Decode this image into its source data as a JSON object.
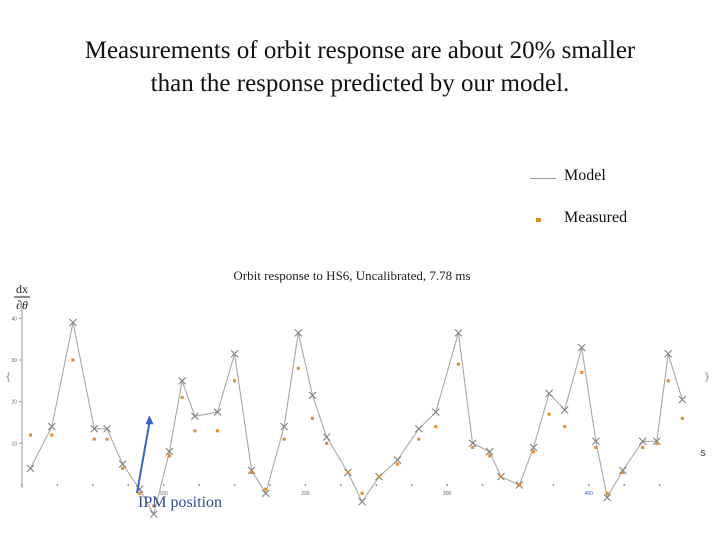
{
  "slide": {
    "title_line1": "Measurements of orbit response are about 20% smaller",
    "title_line2": "than the response predicted by our model."
  },
  "legend": {
    "model_label": "Model",
    "measured_label": "Measured"
  },
  "annotation": {
    "ipm_label": "IPM position",
    "ipm_s": 90
  },
  "colors": {
    "model_line": "#a8a8a8",
    "model_marker": "#7f7f7f",
    "measured_marker": "#e08a2a",
    "axis": "#9a9a9a",
    "ipm_arrow": "#3a63c8",
    "highlight_tick": "#3a63c8"
  },
  "chart_data": {
    "type": "line",
    "title": "Orbit response to HS6, Uncalibrated, 7.78 ms",
    "ylabel_numerator": "dx",
    "ylabel_denominator": "∂θ",
    "xlabel": "s",
    "xlim": [
      0,
      470
    ],
    "ylim": [
      0,
      42
    ],
    "xticks": [
      100,
      200,
      300,
      400
    ],
    "xtick_labels": [
      "100",
      "200",
      "300",
      "400"
    ],
    "highlighted_xtick": "400",
    "yticks": [
      10,
      20,
      30,
      40
    ],
    "ytick_labels": [
      "10",
      "20",
      "30",
      "40"
    ],
    "grid": false,
    "legend_position": "top-right",
    "series": [
      {
        "name": "Model",
        "x": [
          6,
          21,
          36,
          51,
          60,
          71,
          83,
          93,
          104,
          113,
          122,
          138,
          150,
          162,
          172,
          185,
          195,
          205,
          215,
          230,
          240,
          252,
          265,
          280,
          292,
          308,
          318,
          330,
          338,
          351,
          361,
          372,
          383,
          395,
          405,
          413,
          424,
          438,
          448,
          456,
          466
        ],
        "y": [
          4,
          14,
          39,
          13.5,
          13.5,
          5,
          -1,
          -7,
          8,
          25,
          16.5,
          17.5,
          31.5,
          3.5,
          -2,
          14,
          36.5,
          21.5,
          11.5,
          3,
          -4,
          2,
          6,
          13.5,
          17.5,
          36.5,
          10,
          8,
          2,
          0,
          9,
          22,
          18,
          33,
          10.5,
          -3,
          3.5,
          10.5,
          10.5,
          31.5,
          20.5
        ]
      },
      {
        "name": "Measured",
        "x": [
          6,
          21,
          36,
          51,
          60,
          71,
          83,
          93,
          104,
          113,
          122,
          138,
          150,
          162,
          172,
          185,
          195,
          205,
          215,
          230,
          240,
          252,
          265,
          280,
          292,
          308,
          318,
          330,
          338,
          351,
          361,
          372,
          383,
          395,
          405,
          413,
          424,
          438,
          448,
          456,
          466
        ],
        "y": [
          12,
          12,
          30,
          11,
          11,
          4,
          -2,
          -5,
          7,
          21,
          13,
          13,
          25,
          3,
          -1,
          11,
          28,
          16,
          10,
          3,
          -2,
          2,
          5,
          11,
          14,
          29,
          9,
          7,
          2,
          0,
          8,
          17,
          14,
          27,
          9,
          -2,
          3,
          9,
          10,
          25,
          16
        ]
      }
    ],
    "extra_series_note": ""
  }
}
